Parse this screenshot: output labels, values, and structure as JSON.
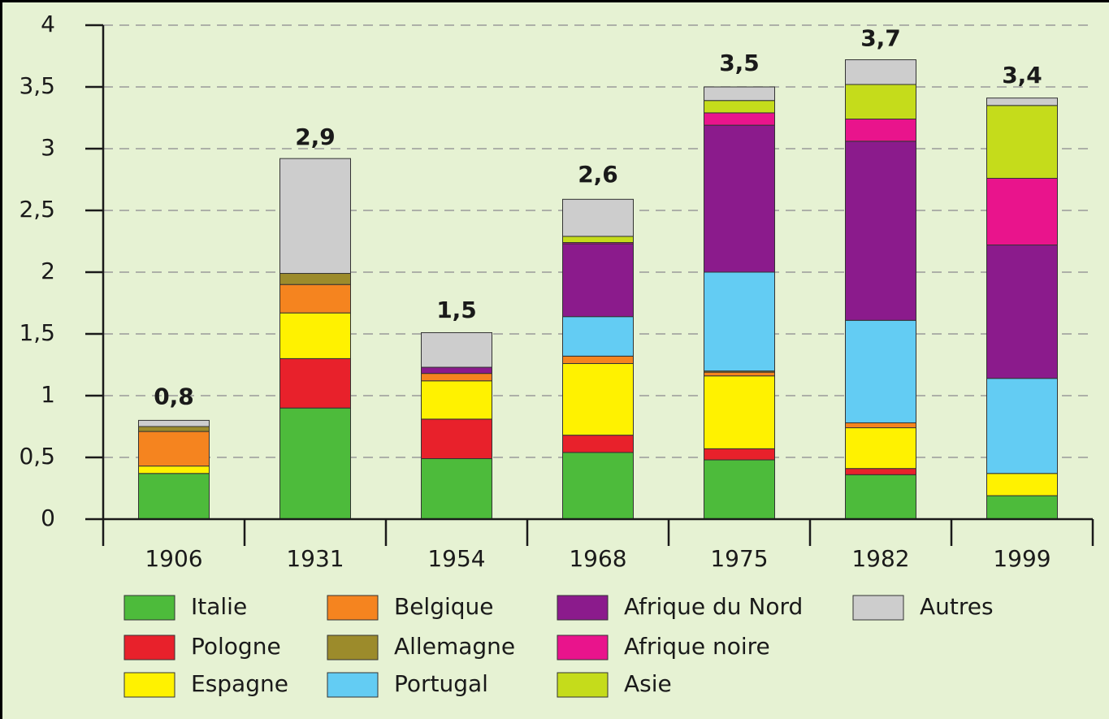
{
  "chart_data": {
    "type": "stacked_bar",
    "categories": [
      "1906",
      "1931",
      "1954",
      "1968",
      "1975",
      "1982",
      "1999"
    ],
    "series": [
      {
        "name": "Italie",
        "color": "#4dbb3b",
        "values": [
          0.37,
          0.9,
          0.49,
          0.54,
          0.48,
          0.36,
          0.19
        ]
      },
      {
        "name": "Pologne",
        "color": "#e8212b",
        "values": [
          0,
          0.4,
          0.32,
          0.14,
          0.09,
          0.05,
          0
        ]
      },
      {
        "name": "Espagne",
        "color": "#fff200",
        "values": [
          0.06,
          0.37,
          0.31,
          0.58,
          0.59,
          0.33,
          0.18
        ]
      },
      {
        "name": "Belgique",
        "color": "#f5841f",
        "values": [
          0.28,
          0.23,
          0.06,
          0.06,
          0.03,
          0.04,
          0
        ]
      },
      {
        "name": "Allemagne",
        "color": "#9c8b2b",
        "values": [
          0.04,
          0.09,
          0,
          0,
          0.01,
          0,
          0
        ]
      },
      {
        "name": "Portugal",
        "color": "#63ccf3",
        "values": [
          0,
          0,
          0,
          0.32,
          0.8,
          0.83,
          0.77
        ]
      },
      {
        "name": "Afrique du Nord",
        "color": "#8b1b8c",
        "values": [
          0,
          0,
          0.05,
          0.59,
          1.19,
          1.45,
          1.08
        ]
      },
      {
        "name": "Afrique noire",
        "color": "#e9148c",
        "values": [
          0,
          0,
          0,
          0.01,
          0.1,
          0.18,
          0.54
        ]
      },
      {
        "name": "Asie",
        "color": "#c5dc1b",
        "values": [
          0,
          0,
          0,
          0.05,
          0.1,
          0.28,
          0.59
        ]
      },
      {
        "name": "Autres",
        "color": "#cdcdcd",
        "values": [
          0.05,
          0.93,
          0.28,
          0.3,
          0.11,
          0.2,
          0.06
        ]
      }
    ],
    "totals": [
      0.8,
      2.9,
      1.5,
      2.6,
      3.5,
      3.7,
      3.4
    ],
    "total_labels": [
      "0,8",
      "2,9",
      "1,5",
      "2,6",
      "3,5",
      "3,7",
      "3,4"
    ],
    "ylim": [
      0,
      4
    ],
    "yticks": [
      0,
      {
        "value": 0.5,
        "label": "0,5"
      },
      1,
      {
        "value": 1.5,
        "label": "1,5"
      },
      2,
      {
        "value": 2.5,
        "label": "2,5"
      },
      3,
      {
        "value": 3.5,
        "label": "3,5"
      },
      4
    ],
    "grid": true
  }
}
